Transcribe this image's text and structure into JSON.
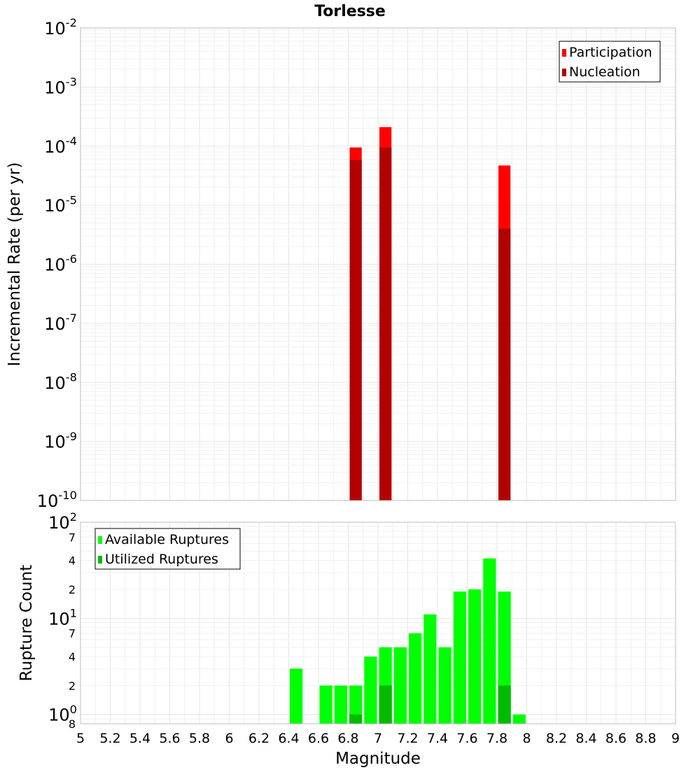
{
  "chart_data": [
    {
      "type": "bar",
      "title": "Torlesse",
      "xlabel": "",
      "ylabel": "Incremental Rate (per yr)",
      "y_scale": "log",
      "xlim": [
        5,
        9
      ],
      "ylim": [
        1e-10,
        0.01
      ],
      "grid": true,
      "legend_position": "top-right",
      "y_tick_labels": [
        {
          "base": "10",
          "exp": "-10"
        },
        {
          "base": "10",
          "exp": "-9"
        },
        {
          "base": "10",
          "exp": "-8"
        },
        {
          "base": "10",
          "exp": "-7"
        },
        {
          "base": "10",
          "exp": "-6"
        },
        {
          "base": "10",
          "exp": "-5"
        },
        {
          "base": "10",
          "exp": "-4"
        },
        {
          "base": "10",
          "exp": "-3"
        },
        {
          "base": "10",
          "exp": "-2"
        }
      ],
      "bin_width": 0.1,
      "series": [
        {
          "name": "Participation",
          "color": "#ff0000",
          "x": [
            6.85,
            7.05,
            7.85
          ],
          "values": [
            9.5e-05,
            0.00021,
            4.7e-05
          ]
        },
        {
          "name": "Nucleation",
          "color": "#b30000",
          "x": [
            6.85,
            7.05,
            7.85
          ],
          "values": [
            5.8e-05,
            9.5e-05,
            4e-06
          ]
        }
      ]
    },
    {
      "type": "bar",
      "title": "",
      "xlabel": "Magnitude",
      "ylabel": "Rupture Count",
      "y_scale": "log",
      "xlim": [
        5,
        9
      ],
      "ylim": [
        0.8,
        100
      ],
      "grid": true,
      "legend_position": "top-left",
      "x_ticks": [
        "5",
        "5.2",
        "5.4",
        "5.6",
        "5.8",
        "6",
        "6.2",
        "6.4",
        "6.6",
        "6.8",
        "7",
        "7.2",
        "7.4",
        "7.6",
        "7.8",
        "8",
        "8.2",
        "8.4",
        "8.6",
        "8.8",
        "9"
      ],
      "y_major_tick_labels": [
        {
          "base": "10",
          "exp": "0",
          "value": 1
        },
        {
          "base": "10",
          "exp": "1",
          "value": 10
        },
        {
          "base": "10",
          "exp": "2",
          "value": 100
        }
      ],
      "y_minor_tick_labels": [
        {
          "label": "8",
          "value": 0.8
        },
        {
          "label": "2",
          "value": 2
        },
        {
          "label": "4",
          "value": 4
        },
        {
          "label": "7",
          "value": 7
        },
        {
          "label": "2",
          "value": 20
        },
        {
          "label": "4",
          "value": 40
        },
        {
          "label": "7",
          "value": 70
        }
      ],
      "bin_width": 0.1,
      "series": [
        {
          "name": "Available Ruptures",
          "color": "#00ff00",
          "x": [
            6.45,
            6.65,
            6.75,
            6.85,
            6.95,
            7.05,
            7.15,
            7.25,
            7.35,
            7.45,
            7.55,
            7.65,
            7.75,
            7.85,
            7.95
          ],
          "values": [
            3,
            2,
            2,
            2,
            4,
            5,
            5,
            7,
            11,
            5,
            19,
            20,
            42,
            19,
            1
          ]
        },
        {
          "name": "Utilized Ruptures",
          "color": "#00bb00",
          "x": [
            6.85,
            7.05,
            7.85
          ],
          "values": [
            1,
            2,
            2
          ]
        }
      ]
    }
  ]
}
